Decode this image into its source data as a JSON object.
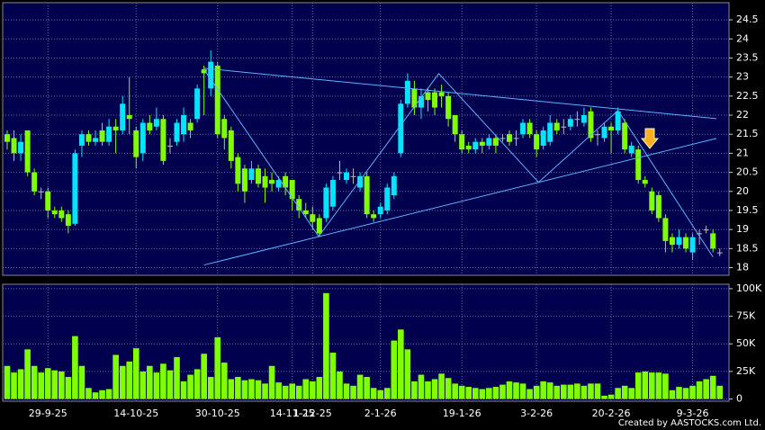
{
  "chart_data": {
    "type": "candlestick",
    "up_color": "#00e5ff",
    "down_color": "#80ff00",
    "trendline_color": "#5ab4ff",
    "grid": true,
    "ylim": [
      17.8,
      24.95
    ],
    "yticks": [
      18,
      18.5,
      19,
      19.5,
      20,
      20.5,
      21,
      21.5,
      22,
      22.5,
      23,
      23.5,
      24,
      24.5
    ],
    "categories": [
      null,
      null,
      null,
      null,
      null,
      null,
      "29-9-25",
      null,
      null,
      null,
      null,
      null,
      null,
      null,
      null,
      null,
      null,
      null,
      null,
      "14-10-25",
      null,
      null,
      null,
      null,
      null,
      null,
      null,
      null,
      null,
      null,
      null,
      "30-10-25",
      null,
      null,
      null,
      null,
      null,
      null,
      null,
      null,
      null,
      null,
      "14-11-25",
      null,
      null,
      "1-12-25",
      null,
      null,
      null,
      null,
      null,
      null,
      null,
      null,
      null,
      "2-1-26",
      null,
      null,
      null,
      null,
      null,
      null,
      null,
      null,
      null,
      null,
      null,
      "19-1-26",
      null,
      null,
      null,
      null,
      null,
      null,
      null,
      null,
      null,
      null,
      "3-2-26",
      null,
      null,
      null,
      null,
      null,
      null,
      null,
      null,
      null,
      null,
      "20-2-26",
      null,
      null,
      null,
      null,
      null,
      null,
      null,
      null,
      null,
      null,
      null,
      "9-3-26",
      null,
      null,
      null,
      null
    ],
    "open": [
      21.5,
      21.4,
      21.0,
      21.6,
      20.5,
      20.0,
      20.0,
      19.5,
      19.5,
      19.4,
      19.15,
      21.2,
      21.5,
      21.3,
      21.6,
      21.3,
      21.7,
      21.6,
      22.0,
      21.6,
      21.0,
      21.8,
      21.7,
      21.9,
      21.2,
      21.3,
      21.5,
      21.8,
      21.9,
      23.2,
      22.7,
      23.3,
      21.9,
      21.6,
      20.9,
      20.6,
      20.3,
      20.6,
      20.4,
      20.3,
      20.1,
      20.4,
      20.3,
      19.8,
      19.5,
      19.4,
      19.3,
      19.3,
      19.6,
      20.5,
      20.3,
      20.4,
      20.1,
      20.4,
      19.4,
      19.4,
      19.5,
      19.9,
      21.0,
      22.3,
      22.7,
      22.2,
      22.6,
      22.6,
      22.6,
      22.5,
      22.0,
      21.5,
      21.2,
      21.1,
      21.3,
      21.2,
      21.4,
      21.4,
      21.5,
      21.4,
      21.5,
      21.8,
      21.5,
      21.2,
      21.3,
      21.8,
      21.7,
      21.7,
      21.9,
      21.8,
      22.1,
      21.5,
      21.4,
      21.7,
      21.6,
      21.8,
      21.0,
      21.1,
      20.3,
      20.0,
      19.9,
      19.3,
      18.8,
      18.6,
      18.8,
      18.4,
      18.9,
      19.0,
      18.9,
      18.4
    ],
    "high": [
      21.6,
      21.6,
      21.5,
      21.6,
      20.6,
      20.1,
      20.1,
      19.6,
      19.6,
      19.5,
      21.1,
      21.6,
      21.6,
      21.6,
      21.8,
      21.9,
      21.9,
      22.5,
      23.0,
      21.7,
      21.9,
      22.0,
      22.2,
      22.0,
      21.4,
      21.9,
      22.2,
      21.9,
      22.8,
      23.3,
      23.7,
      23.4,
      22.0,
      21.7,
      21.0,
      20.7,
      20.8,
      20.7,
      20.6,
      20.5,
      20.4,
      20.5,
      20.3,
      19.9,
      19.7,
      19.6,
      19.4,
      20.2,
      20.4,
      20.8,
      20.6,
      20.6,
      20.5,
      20.5,
      19.5,
      19.7,
      20.2,
      20.5,
      22.4,
      23.1,
      22.9,
      22.7,
      22.7,
      22.7,
      22.8,
      22.6,
      22.0,
      21.6,
      21.3,
      21.4,
      21.4,
      21.5,
      21.5,
      21.5,
      21.6,
      21.6,
      21.9,
      21.9,
      21.6,
      21.7,
      22.0,
      21.9,
      21.9,
      22.0,
      22.1,
      22.2,
      22.2,
      21.6,
      21.8,
      21.8,
      22.2,
      21.9,
      21.3,
      21.2,
      20.4,
      20.1,
      20.0,
      19.4,
      18.9,
      19.0,
      18.9,
      18.9,
      19.0,
      19.1,
      19.0,
      18.5
    ],
    "low": [
      21.1,
      20.8,
      20.8,
      20.4,
      19.9,
      19.8,
      19.3,
      19.3,
      19.2,
      18.9,
      19.1,
      20.9,
      21.2,
      21.2,
      21.2,
      21.2,
      21.0,
      21.5,
      21.5,
      20.6,
      20.8,
      21.5,
      21.6,
      20.7,
      21.0,
      21.2,
      21.3,
      21.4,
      21.8,
      22.0,
      22.5,
      21.4,
      21.1,
      20.6,
      20.0,
      19.7,
      20.2,
      20.1,
      19.7,
      20.0,
      20.0,
      19.9,
      19.5,
      19.3,
      19.3,
      19.0,
      18.8,
      19.2,
      19.5,
      20.3,
      20.2,
      20.2,
      20.0,
      19.3,
      19.2,
      19.3,
      19.4,
      19.8,
      20.9,
      22.2,
      22.0,
      21.9,
      22.1,
      22.0,
      22.2,
      21.7,
      21.3,
      21.0,
      21.0,
      21.0,
      21.0,
      21.1,
      21.0,
      21.3,
      21.2,
      21.2,
      21.4,
      21.4,
      20.9,
      21.1,
      21.2,
      21.5,
      21.5,
      21.6,
      21.7,
      21.7,
      21.3,
      21.2,
      21.3,
      21.0,
      21.5,
      21.0,
      20.9,
      20.2,
      20.1,
      19.4,
      19.2,
      18.4,
      18.4,
      18.5,
      18.4,
      18.2,
      18.6,
      18.9,
      18.4,
      18.3
    ],
    "close": [
      21.3,
      21.0,
      21.3,
      20.5,
      20.0,
      20.0,
      19.5,
      19.4,
      19.3,
      19.1,
      21.0,
      21.5,
      21.3,
      21.4,
      21.3,
      21.7,
      21.6,
      22.3,
      21.9,
      20.9,
      21.8,
      21.6,
      21.9,
      20.8,
      21.2,
      21.8,
      22.0,
      21.6,
      22.7,
      23.1,
      23.4,
      21.5,
      21.4,
      20.8,
      20.2,
      20.0,
      20.6,
      20.2,
      20.1,
      20.2,
      20.3,
      20.1,
      19.8,
      19.5,
      19.4,
      19.2,
      18.9,
      20.1,
      20.3,
      20.5,
      20.5,
      20.4,
      20.4,
      19.4,
      19.3,
      19.6,
      20.1,
      20.4,
      22.3,
      22.9,
      22.2,
      22.5,
      22.4,
      22.2,
      22.5,
      21.9,
      21.5,
      21.1,
      21.1,
      21.3,
      21.2,
      21.4,
      21.2,
      21.4,
      21.3,
      21.4,
      21.8,
      21.5,
      21.1,
      21.6,
      21.8,
      21.6,
      21.7,
      21.9,
      21.9,
      22.0,
      21.4,
      21.5,
      21.7,
      21.6,
      22.1,
      21.1,
      21.2,
      20.3,
      20.2,
      19.5,
      19.3,
      18.7,
      18.6,
      18.8,
      18.5,
      18.8,
      18.9,
      19.0,
      18.5,
      18.4
    ],
    "trendlines": [
      {
        "x": [
          29,
          104.5
        ],
        "y": [
          23.23,
          21.91
        ]
      },
      {
        "x": [
          29,
          104.5
        ],
        "y": [
          18.07,
          21.39
        ]
      },
      {
        "x": [
          29,
          45.9,
          63.6,
          78.3,
          90,
          104
        ],
        "y": [
          23.2,
          18.82,
          23.09,
          20.24,
          22.12,
          18.28
        ]
      }
    ],
    "volume": {
      "type": "bar",
      "color": "#80ff00",
      "ylim": [
        -2000,
        104000
      ],
      "yticks": [
        0,
        {
          "value": 25000,
          "label": "25K"
        },
        {
          "value": 50000,
          "label": "50K"
        },
        {
          "value": 75000,
          "label": "75K"
        },
        {
          "value": 100000,
          "label": "100K"
        }
      ],
      "values": [
        30000,
        24000,
        27000,
        45000,
        30000,
        24000,
        28000,
        26000,
        25000,
        20000,
        57000,
        30000,
        10000,
        6000,
        8000,
        9000,
        40000,
        30000,
        34000,
        46000,
        25000,
        30000,
        24000,
        32000,
        26000,
        38000,
        16000,
        22000,
        27000,
        41000,
        20000,
        56000,
        33000,
        18000,
        20000,
        17000,
        18000,
        17000,
        14000,
        30000,
        15000,
        12000,
        14000,
        12000,
        18000,
        16000,
        20000,
        96000,
        42000,
        25000,
        14000,
        12000,
        22000,
        20000,
        10000,
        8000,
        10000,
        53000,
        63000,
        45000,
        16000,
        22000,
        16000,
        18000,
        23000,
        19000,
        14000,
        12000,
        11000,
        10000,
        9000,
        10000,
        11000,
        13000,
        16000,
        15000,
        14000,
        9000,
        12000,
        16000,
        15000,
        12000,
        13000,
        13000,
        14000,
        12000,
        14000,
        14000,
        3000,
        4000,
        10000,
        12000,
        10000,
        24000,
        25000,
        24000,
        24000,
        23000,
        8000,
        11000,
        10000,
        12000,
        16000,
        18000,
        21000,
        12000
      ]
    },
    "watermark": "Created by AASTOCKS.com Ltd."
  }
}
